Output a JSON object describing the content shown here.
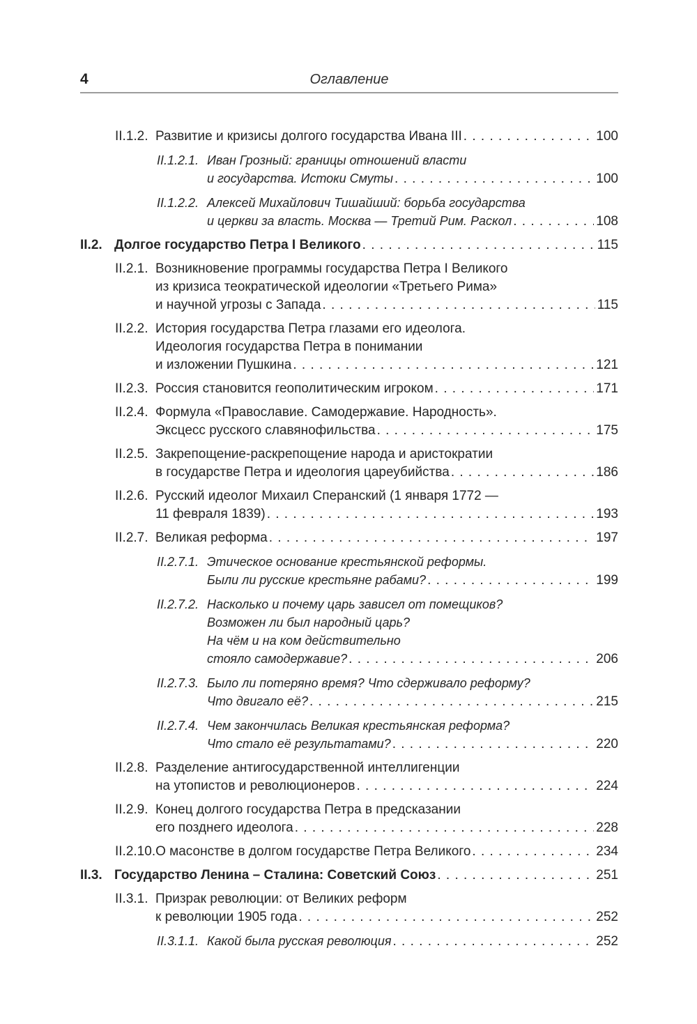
{
  "page": {
    "number": "4",
    "header_title": "Оглавление"
  },
  "colors": {
    "text": "#262626",
    "rule": "#9c9c9c",
    "background": "#ffffff"
  },
  "toc": {
    "entries": [
      {
        "level": 3,
        "num": "II.1.2.",
        "lines": [
          "Развитие и кризисы долгого государства Ивана III"
        ],
        "page": "100"
      },
      {
        "level": 4,
        "num": "II.1.2.1.",
        "lines": [
          "Иван Грозный: границы отношений власти",
          "и государства. Истоки Смуты"
        ],
        "page": "100"
      },
      {
        "level": 4,
        "num": "II.1.2.2.",
        "lines": [
          "Алексей Михайлович Тишайший: борьба государства",
          "и церкви за власть. Москва — Третий Рим. Раскол"
        ],
        "page": "108"
      },
      {
        "level": 2,
        "num": "II.2.",
        "lines": [
          "Долгое государство Петра I Великого"
        ],
        "page": "115"
      },
      {
        "level": 3,
        "num": "II.2.1.",
        "lines": [
          "Возникновение программы государства Петра I Великого",
          "из кризиса теократической идеологии «Третьего Рима»",
          "и научной угрозы с Запада"
        ],
        "page": "115"
      },
      {
        "level": 3,
        "num": "II.2.2.",
        "lines": [
          "История государства Петра глазами его идеолога.",
          "Идеология государства Петра в понимании",
          "и изложении Пушкина"
        ],
        "page": "121"
      },
      {
        "level": 3,
        "num": "II.2.3.",
        "lines": [
          "Россия становится геополитическим игроком"
        ],
        "page": "171"
      },
      {
        "level": 3,
        "num": "II.2.4.",
        "lines": [
          "Формула «Православие. Самодержавие. Народность».",
          "Эксцесс русского славянофильства"
        ],
        "page": "175"
      },
      {
        "level": 3,
        "num": "II.2.5.",
        "lines": [
          "Закрепощение-раскрепощение народа и аристократии",
          "в государстве Петра и идеология цареубийства"
        ],
        "page": "186"
      },
      {
        "level": 3,
        "num": "II.2.6.",
        "lines": [
          "Русский идеолог Михаил Сперанский (1 января 1772 —",
          "11 февраля 1839)"
        ],
        "page": "193"
      },
      {
        "level": 3,
        "num": "II.2.7.",
        "lines": [
          "Великая реформа"
        ],
        "page": "197"
      },
      {
        "level": 4,
        "num": "II.2.7.1.",
        "lines": [
          "Этическое основание крестьянской реформы.",
          "Были ли русские крестьяне рабами?"
        ],
        "page": "199"
      },
      {
        "level": 4,
        "num": "II.2.7.2.",
        "lines": [
          "Насколько и почему царь зависел от помещиков?",
          "Возможен ли был народный царь?",
          "На чём и на ком действительно",
          "стояло самодержавие?"
        ],
        "page": "206"
      },
      {
        "level": 4,
        "num": "II.2.7.3.",
        "lines": [
          "Было ли потеряно время? Что сдерживало реформу?",
          "Что двигало её?"
        ],
        "page": "215"
      },
      {
        "level": 4,
        "num": "II.2.7.4.",
        "lines": [
          "Чем закончилась Великая крестьянская реформа?",
          "Что стало её результатами?"
        ],
        "page": "220"
      },
      {
        "level": 3,
        "num": "II.2.8.",
        "lines": [
          "Разделение антигосударственной интеллигенции",
          "на утопистов и революционеров"
        ],
        "page": "224"
      },
      {
        "level": 3,
        "num": "II.2.9.",
        "lines": [
          "Конец долгого государства Петра в предсказании",
          "его позднего идеолога"
        ],
        "page": "228"
      },
      {
        "level": 3,
        "num": "II.2.10.",
        "lines": [
          "О масонстве в долгом государстве Петра Великого"
        ],
        "page": "234"
      },
      {
        "level": 2,
        "num": "II.3.",
        "lines": [
          "Государство Ленина – Сталина: Советский Союз"
        ],
        "page": "251"
      },
      {
        "level": 3,
        "num": "II.3.1.",
        "lines": [
          "Призрак революции: от Великих реформ",
          "к революции 1905 года"
        ],
        "page": "252"
      },
      {
        "level": 4,
        "num": "II.3.1.1.",
        "lines": [
          "Какой была русская революция"
        ],
        "page": "252"
      }
    ]
  }
}
